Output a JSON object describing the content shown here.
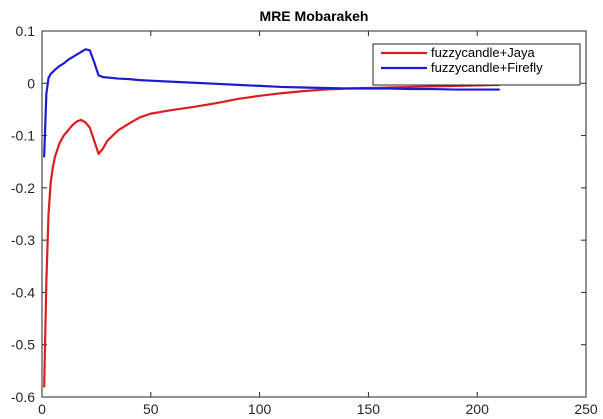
{
  "chart_data": {
    "type": "line",
    "title": "MRE Mobarakeh",
    "xlabel": "",
    "ylabel": "",
    "xlim": [
      0,
      250
    ],
    "ylim": [
      -0.6,
      0.1
    ],
    "xticks": [
      0,
      50,
      100,
      150,
      200,
      250
    ],
    "yticks": [
      0.1,
      0,
      -0.1,
      -0.2,
      -0.3,
      -0.4,
      -0.5,
      -0.6
    ],
    "xtick_labels": [
      "0",
      "50",
      "100",
      "150",
      "200",
      "250"
    ],
    "ytick_labels": [
      "0.1",
      "0",
      "-0.1",
      "-0.2",
      "-0.3",
      "-0.4",
      "-0.5",
      "-0.6"
    ],
    "grid": false,
    "legend_position": "top-right",
    "series": [
      {
        "name": "fuzzycandle+Jaya",
        "color": "#d91f1f",
        "x": [
          1,
          2,
          3,
          4,
          5,
          6,
          8,
          10,
          12,
          14,
          16,
          18,
          20,
          22,
          24,
          26,
          28,
          30,
          35,
          40,
          45,
          50,
          60,
          70,
          80,
          90,
          100,
          110,
          120,
          130,
          140,
          150,
          160,
          170,
          180,
          190,
          200,
          210
        ],
        "y": [
          -0.58,
          -0.38,
          -0.25,
          -0.19,
          -0.16,
          -0.14,
          -0.115,
          -0.1,
          -0.09,
          -0.08,
          -0.073,
          -0.07,
          -0.075,
          -0.085,
          -0.11,
          -0.135,
          -0.125,
          -0.11,
          -0.09,
          -0.077,
          -0.065,
          -0.058,
          -0.051,
          -0.045,
          -0.038,
          -0.03,
          -0.024,
          -0.019,
          -0.015,
          -0.012,
          -0.01,
          -0.009,
          -0.008,
          -0.007,
          -0.006,
          -0.005,
          -0.004,
          -0.003
        ]
      },
      {
        "name": "fuzzycandle+Firefly",
        "color": "#1b1bd1",
        "x": [
          1,
          2,
          3,
          4,
          5,
          6,
          8,
          10,
          12,
          14,
          16,
          18,
          20,
          22,
          24,
          26,
          28,
          30,
          35,
          40,
          45,
          50,
          60,
          70,
          80,
          90,
          100,
          110,
          120,
          130,
          140,
          150,
          160,
          170,
          180,
          190,
          200,
          210
        ],
        "y": [
          -0.14,
          -0.02,
          0.01,
          0.018,
          0.022,
          0.026,
          0.033,
          0.038,
          0.045,
          0.05,
          0.055,
          0.06,
          0.065,
          0.063,
          0.04,
          0.015,
          0.012,
          0.011,
          0.009,
          0.008,
          0.006,
          0.005,
          0.003,
          0.001,
          -0.001,
          -0.003,
          -0.005,
          -0.007,
          -0.008,
          -0.009,
          -0.01,
          -0.01,
          -0.01,
          -0.011,
          -0.011,
          -0.012,
          -0.012,
          -0.012
        ]
      }
    ]
  }
}
